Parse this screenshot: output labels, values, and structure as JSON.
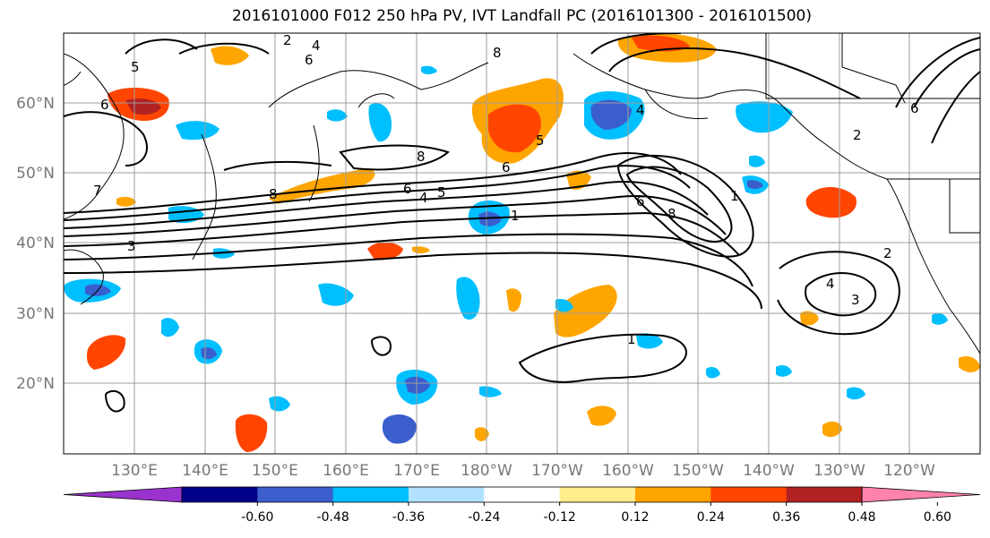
{
  "title": "2016101000 F012 250 hPa PV, IVT Landfall PC (2016101300 - 2016101500)",
  "latitude_labels": [
    "60°N",
    "50°N",
    "40°N",
    "30°N",
    "20°N"
  ],
  "longitude_labels": [
    "130°E",
    "140°E",
    "150°E",
    "160°E",
    "170°E",
    "180°W",
    "170°W",
    "160°W",
    "150°W",
    "140°W",
    "130°W",
    "120°W"
  ],
  "colorbar": {
    "colors": [
      "#9a32cd",
      "#00008b",
      "#3a5fcd",
      "#00bfff",
      "#b0e2ff",
      "#ffffff",
      "#ffec8b",
      "#ffa500",
      "#ff4500",
      "#b22222",
      "#ff82ab"
    ],
    "tick_labels": [
      "-0.60",
      "-0.48",
      "-0.36",
      "-0.24",
      "-0.12",
      "0.12",
      "0.24",
      "0.36",
      "0.48",
      "0.60"
    ]
  },
  "contour_labels": [
    "6",
    "5",
    "2",
    "4",
    "6",
    "8",
    "7",
    "3",
    "8",
    "6",
    "4",
    "5",
    "8",
    "5",
    "1",
    "6",
    "6",
    "1",
    "2",
    "4",
    "3",
    "1",
    "6",
    "2",
    "8",
    "4"
  ]
}
